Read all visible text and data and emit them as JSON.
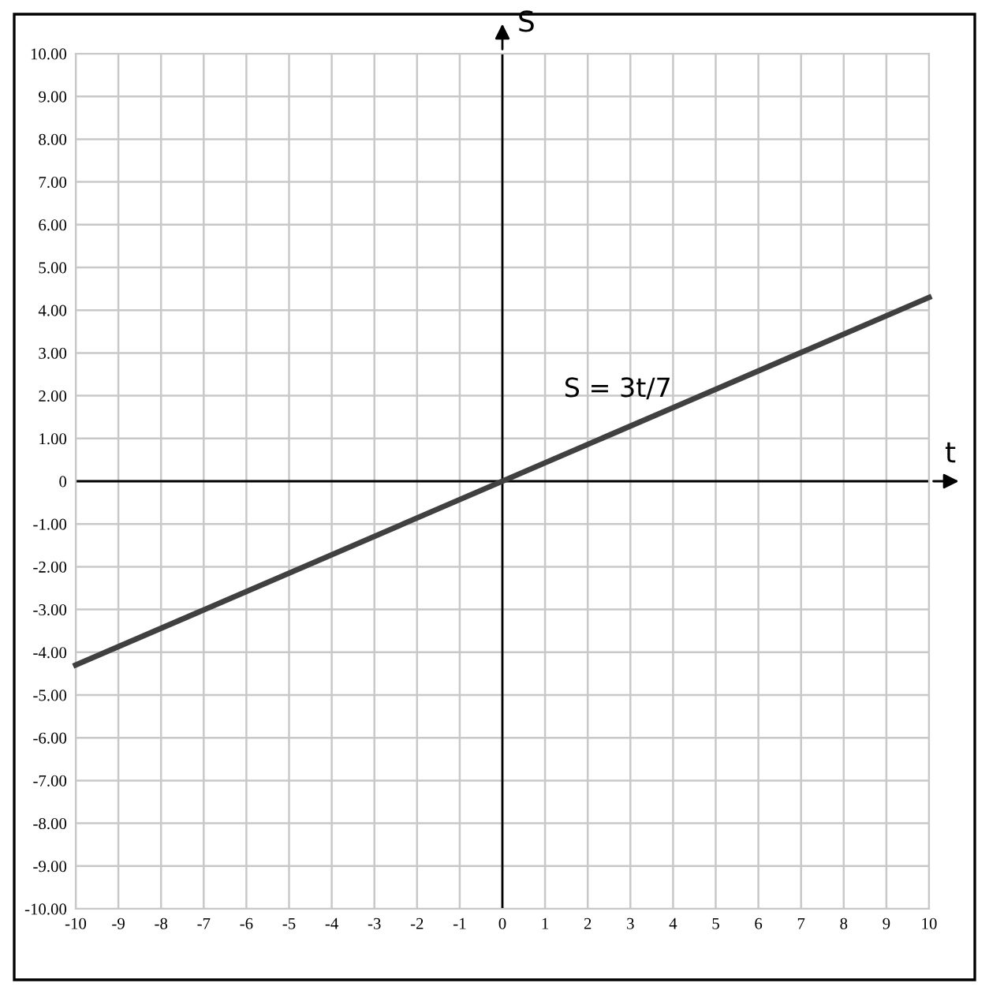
{
  "chart_data": {
    "type": "line",
    "xlabel": "t",
    "ylabel": "S",
    "x": [
      -10,
      10
    ],
    "series": [
      {
        "name": "S = 3t/7",
        "color": "#404040",
        "values": [
          -4.3,
          4.3
        ]
      }
    ],
    "xlim": [
      -10,
      10
    ],
    "ylim": [
      -10,
      10
    ],
    "xticks": [
      -10,
      -9,
      -8,
      -7,
      -6,
      -5,
      -4,
      -3,
      -2,
      -1,
      0,
      1,
      2,
      3,
      4,
      5,
      6,
      7,
      8,
      9,
      10
    ],
    "yticks": [
      {
        "value": -10,
        "label": "-10.00"
      },
      {
        "value": -9,
        "label": "-9.00"
      },
      {
        "value": -8,
        "label": "-8.00"
      },
      {
        "value": -7,
        "label": "-7.00"
      },
      {
        "value": -6,
        "label": "-6.00"
      },
      {
        "value": -5,
        "label": "-5.00"
      },
      {
        "value": -4,
        "label": "-4.00"
      },
      {
        "value": -3,
        "label": "-3.00"
      },
      {
        "value": -2,
        "label": "-2.00"
      },
      {
        "value": -1,
        "label": "-1.00"
      },
      {
        "value": 0,
        "label": "0"
      },
      {
        "value": 1,
        "label": "1.00"
      },
      {
        "value": 2,
        "label": "2.00"
      },
      {
        "value": 3,
        "label": "3.00"
      },
      {
        "value": 4,
        "label": "4.00"
      },
      {
        "value": 5,
        "label": "5.00"
      },
      {
        "value": 6,
        "label": "6.00"
      },
      {
        "value": 7,
        "label": "7.00"
      },
      {
        "value": 8,
        "label": "8.00"
      },
      {
        "value": 9,
        "label": "9.00"
      },
      {
        "value": 10,
        "label": "10.00"
      }
    ],
    "grid": true
  }
}
